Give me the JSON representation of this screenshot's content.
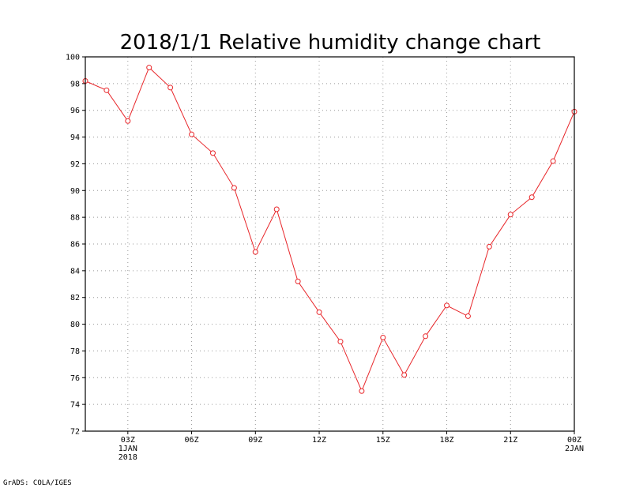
{
  "credit": "GrADS: COLA/IGES",
  "colors": {
    "series": "#e8262a",
    "grid": "#9a9a9a",
    "frame": "#000000"
  },
  "chart_data": {
    "type": "line",
    "title": "2018/1/1 Relative humidity change chart",
    "xlabel": "",
    "ylabel": "",
    "grid": true,
    "legend": "none",
    "xlim": [
      1,
      24
    ],
    "ylim": [
      72,
      100
    ],
    "y_ticks": [
      72,
      74,
      76,
      78,
      80,
      82,
      84,
      86,
      88,
      90,
      92,
      94,
      96,
      98,
      100
    ],
    "x_ticks": [
      {
        "x": 3,
        "lines": [
          "03Z",
          "1JAN",
          "2018"
        ]
      },
      {
        "x": 6,
        "lines": [
          "06Z"
        ]
      },
      {
        "x": 9,
        "lines": [
          "09Z"
        ]
      },
      {
        "x": 12,
        "lines": [
          "12Z"
        ]
      },
      {
        "x": 15,
        "lines": [
          "15Z"
        ]
      },
      {
        "x": 18,
        "lines": [
          "18Z"
        ]
      },
      {
        "x": 21,
        "lines": [
          "21Z"
        ]
      },
      {
        "x": 24,
        "lines": [
          "00Z",
          "2JAN"
        ]
      }
    ],
    "series": [
      {
        "x": [
          1,
          2,
          3,
          4,
          5,
          6,
          7,
          8,
          9,
          10,
          11,
          12,
          13,
          14,
          15,
          16,
          17,
          18,
          19,
          20,
          21,
          22,
          23,
          24
        ],
        "values": [
          98.2,
          97.5,
          95.2,
          99.2,
          97.7,
          94.2,
          92.8,
          90.2,
          85.4,
          88.6,
          83.2,
          80.9,
          78.7,
          75.0,
          79.0,
          76.2,
          79.1,
          81.4,
          80.6,
          85.8,
          88.2,
          89.5,
          92.2,
          95.9
        ]
      }
    ]
  }
}
